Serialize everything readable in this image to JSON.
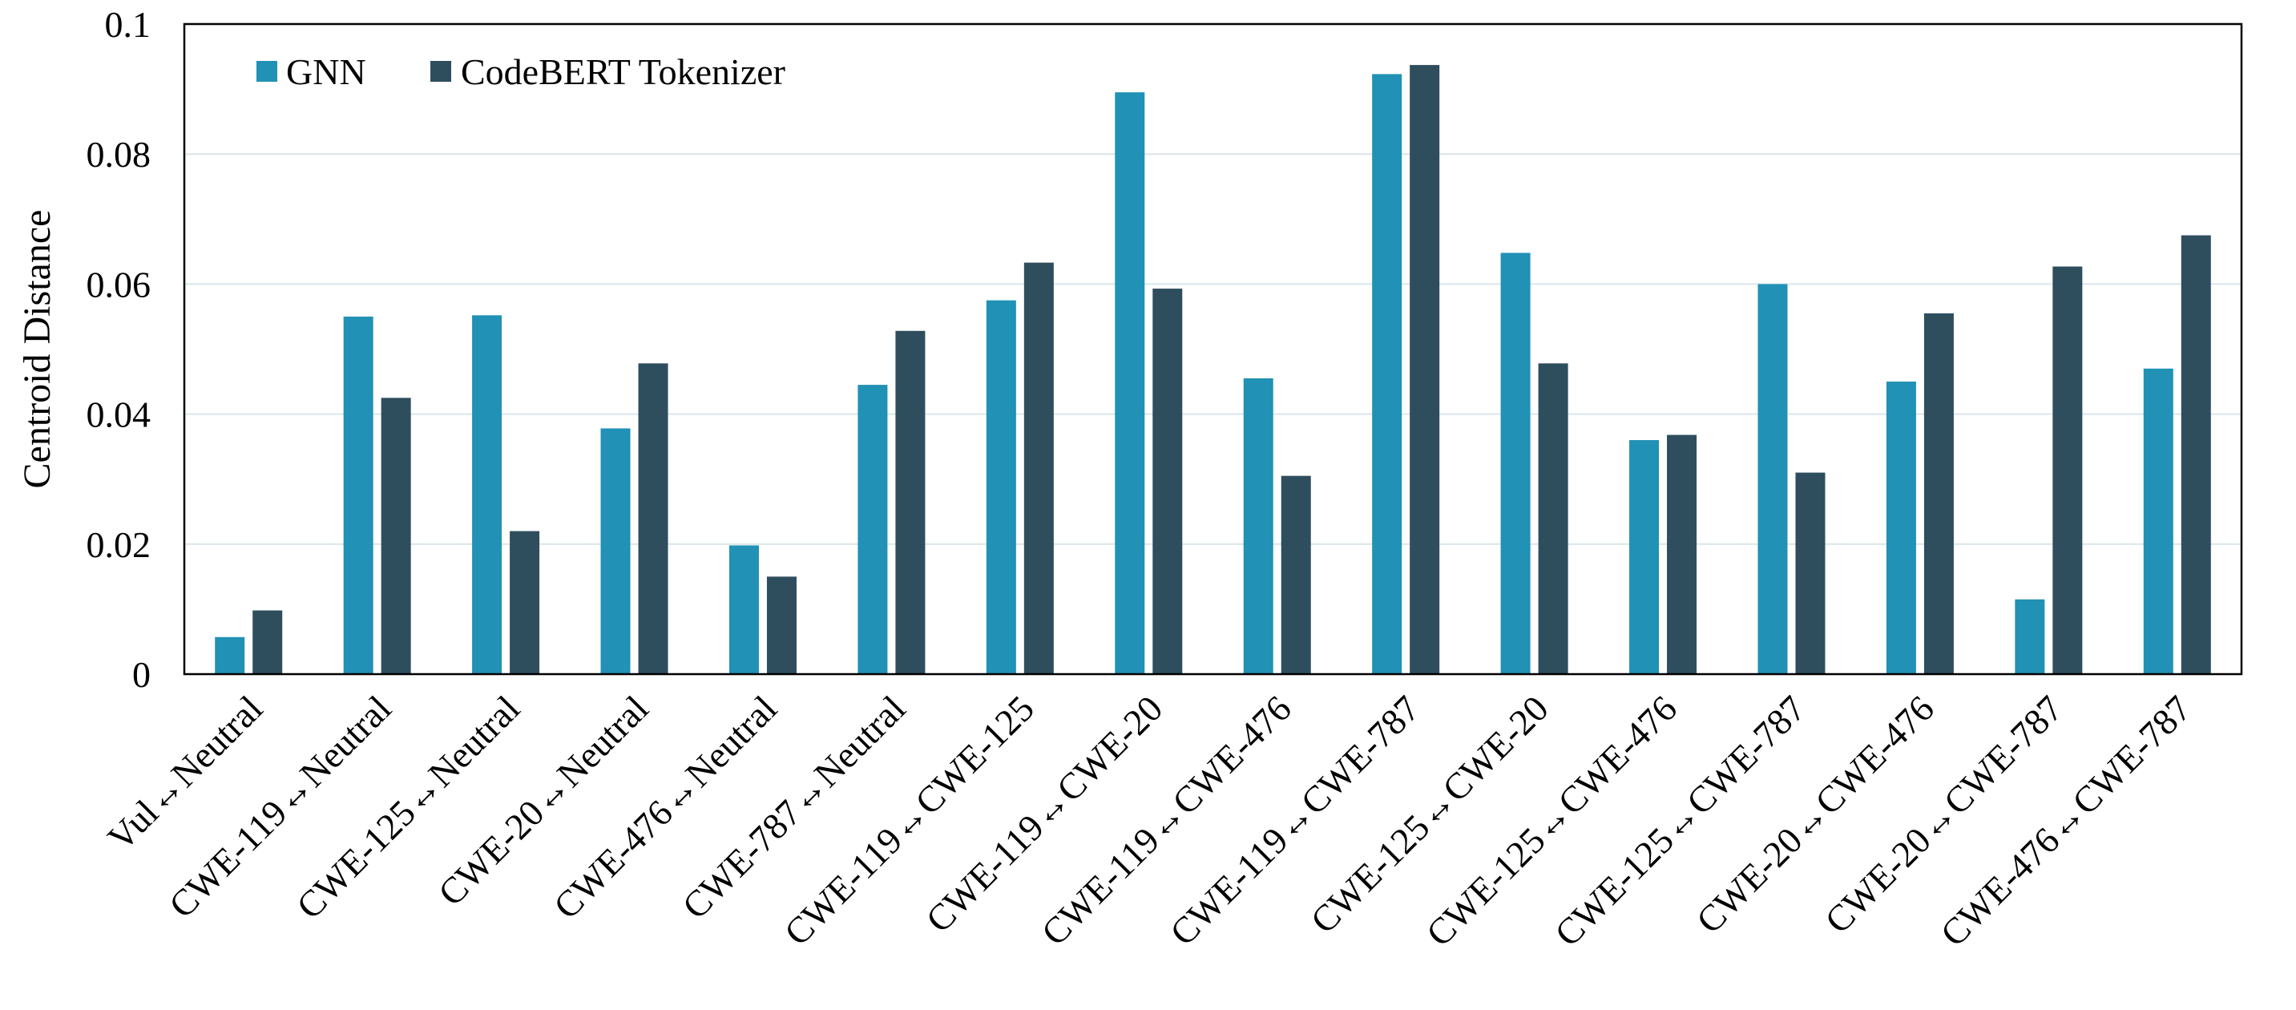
{
  "chart_data": {
    "type": "bar",
    "title": "",
    "xlabel": "",
    "ylabel": "Centroid Distance",
    "ylim": [
      0,
      0.1
    ],
    "yticks": [
      "0",
      "0.02",
      "0.04",
      "0.06",
      "0.08",
      "0.1"
    ],
    "ytick_values": [
      0,
      0.02,
      0.04,
      0.06,
      0.08,
      0.1
    ],
    "grid": true,
    "legend_position": "top-left",
    "categories": [
      "Vul↔Neutral",
      "CWE-119↔Neutral",
      "CWE-125↔Neutral",
      "CWE-20↔Neutral",
      "CWE-476↔Neutral",
      "CWE-787↔Neutral",
      "CWE-119↔CWE-125",
      "CWE-119↔CWE-20",
      "CWE-119↔CWE-476",
      "CWE-119↔CWE-787",
      "CWE-125↔CWE-20",
      "CWE-125↔CWE-476",
      "CWE-125↔CWE-787",
      "CWE-20↔CWE-476",
      "CWE-20↔CWE-787",
      "CWE-476↔CWE-787"
    ],
    "series": [
      {
        "name": "GNN",
        "color": "#2191b5",
        "values": [
          0.0057,
          0.055,
          0.0552,
          0.0378,
          0.0198,
          0.0445,
          0.0575,
          0.0895,
          0.0455,
          0.0923,
          0.0648,
          0.036,
          0.06,
          0.045,
          0.0115,
          0.047
        ]
      },
      {
        "name": "CodeBERT Tokenizer",
        "color": "#2e4e5e",
        "values": [
          0.0098,
          0.0425,
          0.022,
          0.0478,
          0.015,
          0.0528,
          0.0633,
          0.0593,
          0.0305,
          0.0937,
          0.0478,
          0.0368,
          0.031,
          0.0555,
          0.0627,
          0.0675
        ]
      }
    ]
  }
}
